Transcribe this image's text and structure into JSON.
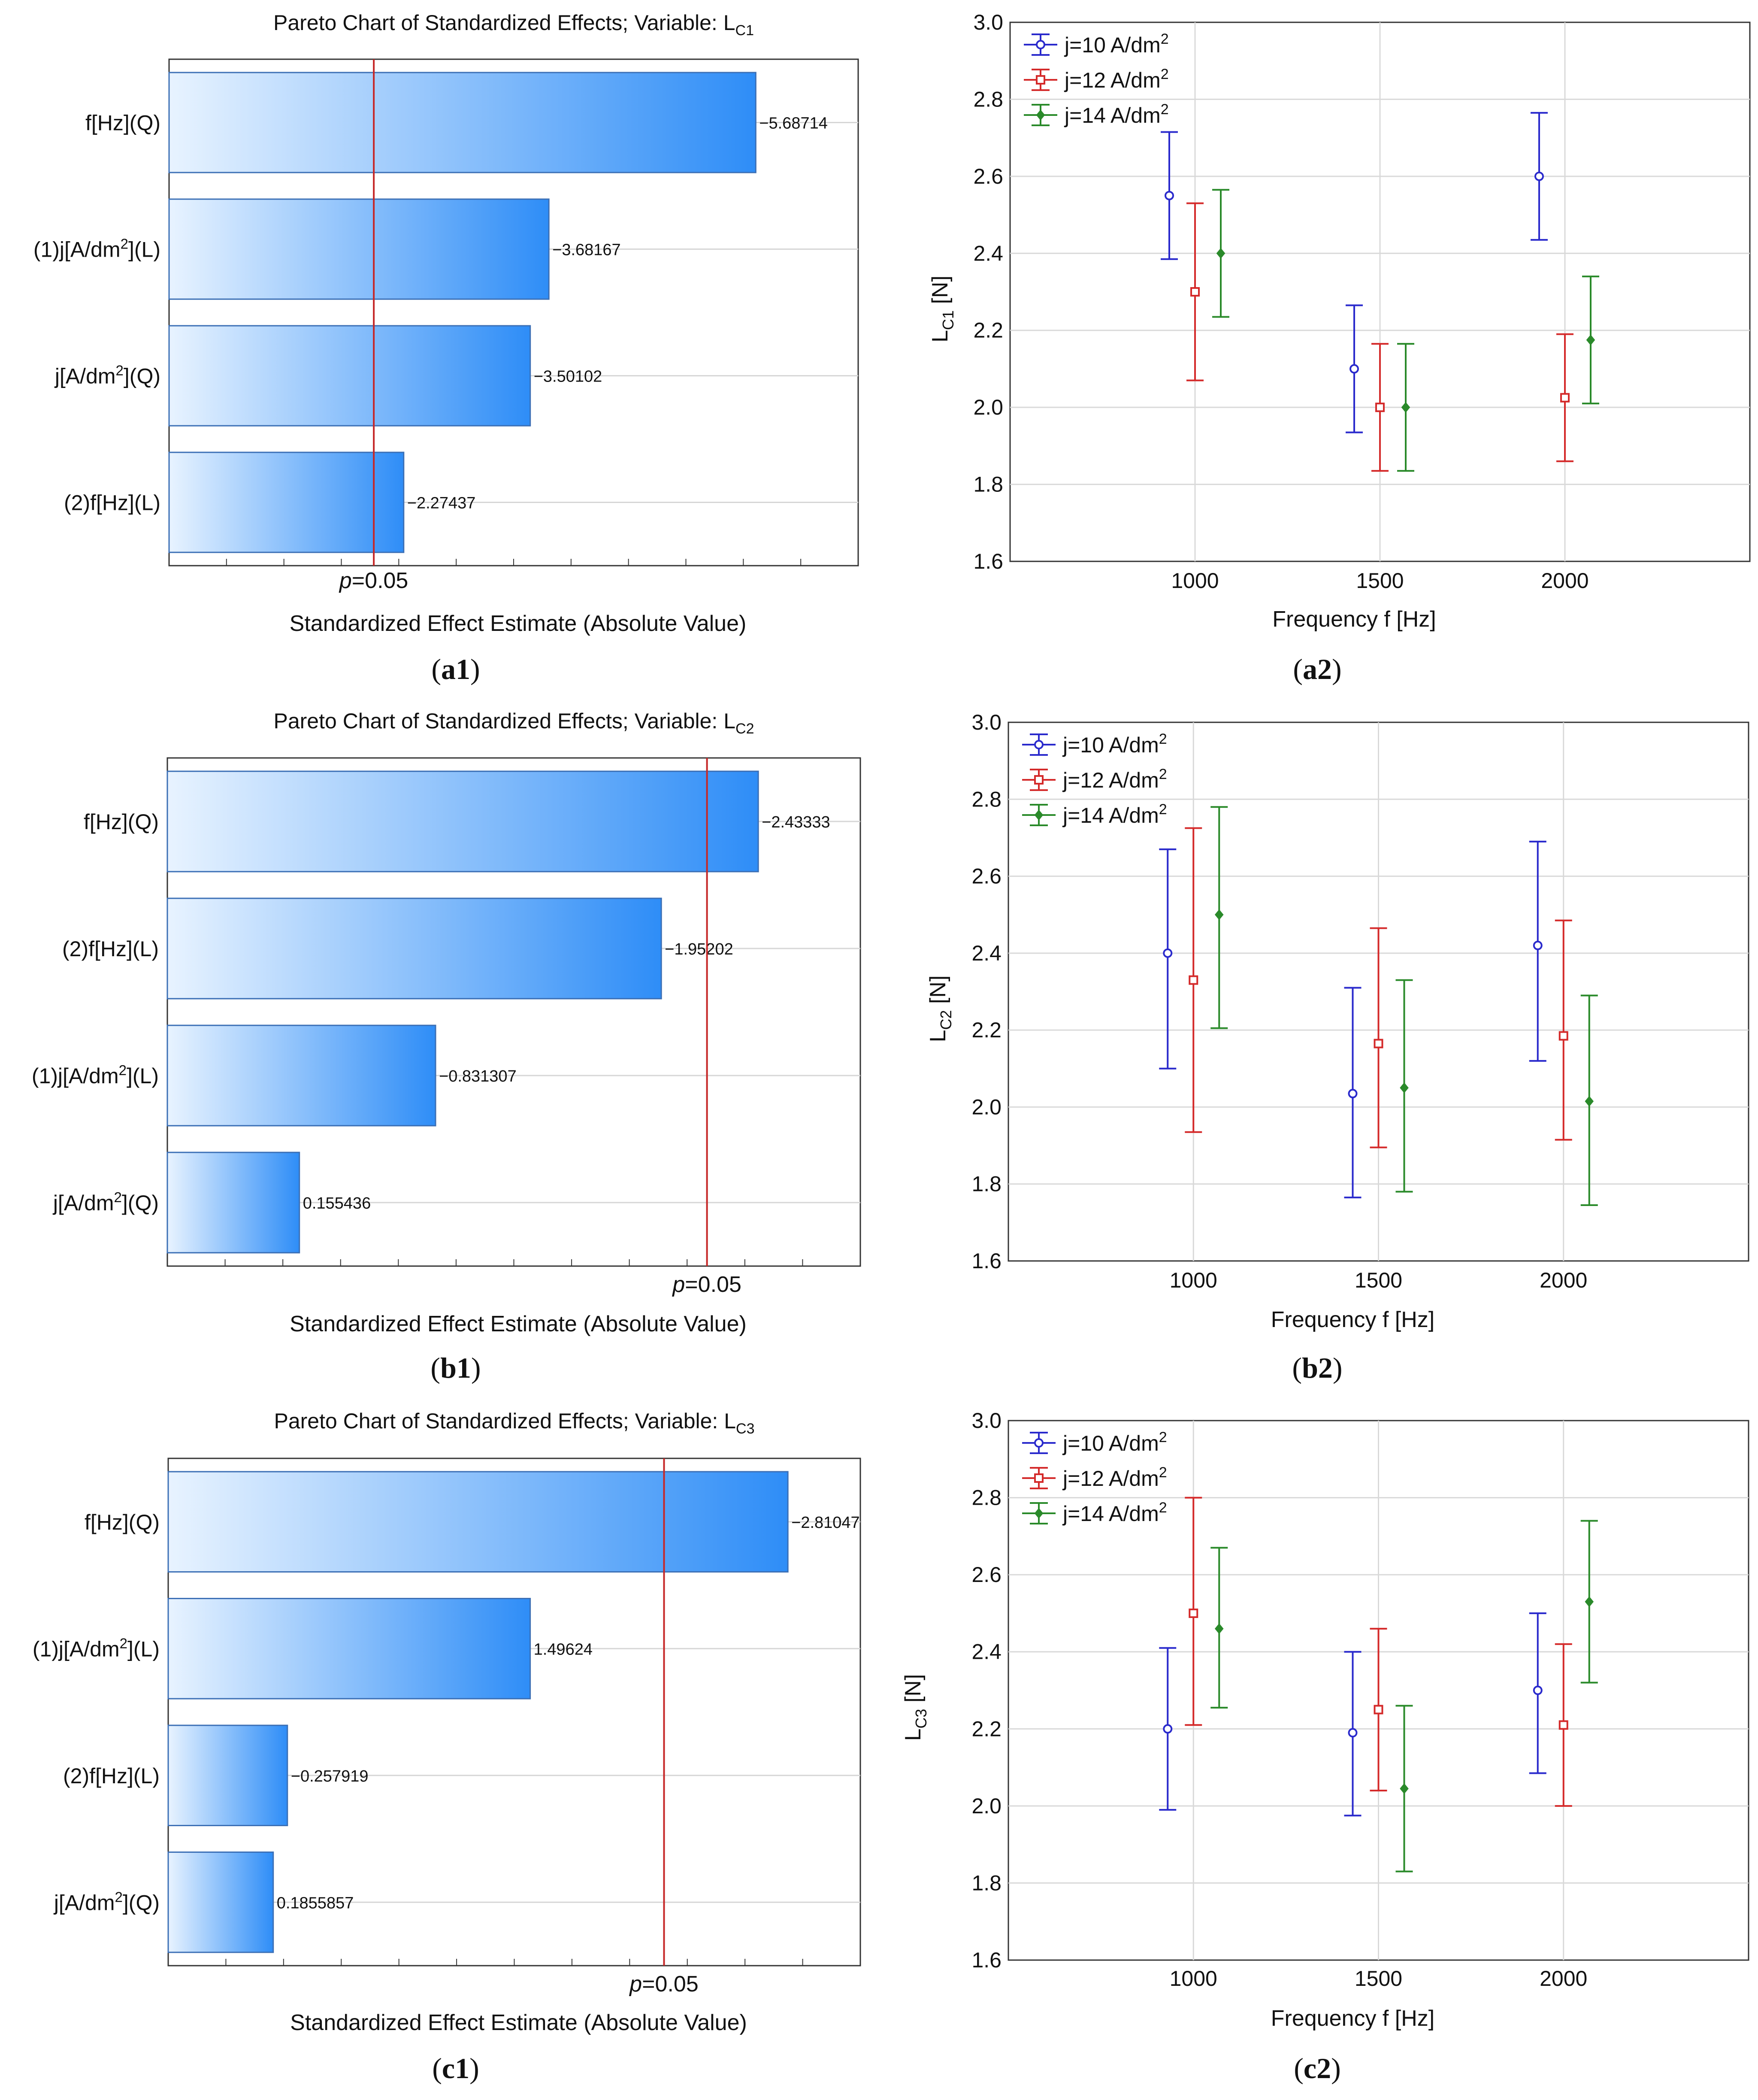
{
  "chart_data": [
    {
      "id": "a1",
      "type": "bar",
      "orientation": "horizontal",
      "title": "Pareto Chart of Standardized Effects; Variable: L",
      "title_sub": "C1",
      "xlabel": "Standardized Effect Estimate (Absolute Value)",
      "categories": [
        "f[Hz](Q)",
        "(1)j[A/dm2](L)",
        "j[A/dm2](Q)",
        "(2)f[Hz](L)"
      ],
      "values": [
        5.68714,
        3.68167,
        3.50102,
        2.27437
      ],
      "value_labels": [
        "−5.68714",
        "−3.68167",
        "−3.50102",
        "−2.27437"
      ],
      "p_line": {
        "label_italic": "p",
        "label_rest": "=0.05",
        "value": 1.9845
      },
      "xlim": [
        0,
        6.68
      ],
      "caption_bold": "a1"
    },
    {
      "id": "a2",
      "type": "errorbar",
      "ylabel": "L",
      "ylabel_sub": "C1",
      "ylabel_unit": " [N]",
      "xlabel": "Frequency f [Hz]",
      "xlim": [
        500,
        2500
      ],
      "ylim": [
        1.6,
        3.0
      ],
      "xticks": [
        1000,
        1500,
        2000
      ],
      "yticks": [
        "1.6",
        "1.8",
        "2.0",
        "2.2",
        "2.4",
        "2.6",
        "2.8",
        "3.0"
      ],
      "series": [
        {
          "name": "j=10 A/dm",
          "sup": "2",
          "color": "#2a2acc",
          "marker": "circle",
          "x": [
            1000,
            1500,
            2000
          ],
          "mean": [
            2.55,
            2.1,
            2.6
          ],
          "lower": [
            2.385,
            1.935,
            2.435
          ],
          "upper": [
            2.715,
            2.265,
            2.765
          ]
        },
        {
          "name": "j=12 A/dm",
          "sup": "2",
          "color": "#d42a2a",
          "marker": "square",
          "x": [
            1000,
            1500,
            2000
          ],
          "mean": [
            2.3,
            2.0,
            2.025
          ],
          "lower": [
            2.07,
            1.835,
            1.86
          ],
          "upper": [
            2.53,
            2.165,
            2.19
          ]
        },
        {
          "name": "j=14 A/dm",
          "sup": "2",
          "color": "#2a8a2a",
          "marker": "diamond",
          "x": [
            1000,
            1500,
            2000
          ],
          "mean": [
            2.4,
            2.0,
            2.175
          ],
          "lower": [
            2.235,
            1.835,
            2.01
          ],
          "upper": [
            2.565,
            2.165,
            2.34
          ]
        }
      ],
      "caption_bold": "a2"
    },
    {
      "id": "b1",
      "type": "bar",
      "orientation": "horizontal",
      "title": "Pareto Chart of Standardized Effects; Variable: L",
      "title_sub": "C2",
      "xlabel": "Standardized Effect Estimate (Absolute Value)",
      "categories": [
        "f[Hz](Q)",
        "(2)f[Hz](L)",
        "(1)j[A/dm2](L)",
        "j[A/dm2](Q)"
      ],
      "values": [
        2.43333,
        1.95202,
        0.831307,
        0.155436
      ],
      "value_labels": [
        "−2.43333",
        "−1.95202",
        "−0.831307",
        "0.155436"
      ],
      "p_line": {
        "label_italic": "p",
        "label_rest": "=0.05",
        "value": 2.1788
      },
      "xlim": [
        -0.5,
        2.94
      ],
      "caption_bold": "b1"
    },
    {
      "id": "b2",
      "type": "errorbar",
      "ylabel": "L",
      "ylabel_sub": "C2",
      "ylabel_unit": " [N]",
      "xlabel": "Frequency f [Hz]",
      "xlim": [
        500,
        2500
      ],
      "ylim": [
        1.6,
        3.0
      ],
      "xticks": [
        1000,
        1500,
        2000
      ],
      "yticks": [
        "1.6",
        "1.8",
        "2.0",
        "2.2",
        "2.4",
        "2.6",
        "2.8",
        "3.0"
      ],
      "series": [
        {
          "name": "j=10 A/dm",
          "sup": "2",
          "color": "#2a2acc",
          "marker": "circle",
          "x": [
            1000,
            1500,
            2000
          ],
          "mean": [
            2.4,
            2.035,
            2.42
          ],
          "lower": [
            2.1,
            1.765,
            2.12
          ],
          "upper": [
            2.67,
            2.31,
            2.69
          ]
        },
        {
          "name": "j=12 A/dm",
          "sup": "2",
          "color": "#d42a2a",
          "marker": "square",
          "x": [
            1000,
            1500,
            2000
          ],
          "mean": [
            2.33,
            2.165,
            2.185
          ],
          "lower": [
            1.935,
            1.895,
            1.915
          ],
          "upper": [
            2.725,
            2.465,
            2.485
          ]
        },
        {
          "name": "j=14 A/dm",
          "sup": "2",
          "color": "#2a8a2a",
          "marker": "diamond",
          "x": [
            1000,
            1500,
            2000
          ],
          "mean": [
            2.5,
            2.05,
            2.015
          ],
          "lower": [
            2.205,
            1.78,
            1.745
          ],
          "upper": [
            2.78,
            2.33,
            2.29
          ]
        }
      ],
      "caption_bold": "b2"
    },
    {
      "id": "c1",
      "type": "bar",
      "orientation": "horizontal",
      "title": "Pareto Chart of Standardized Effects; Variable: L",
      "title_sub": "C3",
      "xlabel": "Standardized Effect Estimate (Absolute Value)",
      "categories": [
        "f[Hz](Q)",
        "(1)j[A/dm2](L)",
        "(2)f[Hz](L)",
        "j[A/dm2](Q)"
      ],
      "values": [
        2.81047,
        1.49624,
        0.257919,
        0.1855857
      ],
      "value_labels": [
        "−2.81047",
        "1.49624",
        "−0.257919",
        "0.1855857"
      ],
      "p_line": {
        "label_italic": "p",
        "label_rest": "=0.05",
        "value": 2.1788
      },
      "xlim": [
        -0.35,
        3.18
      ],
      "caption_bold": "c1"
    },
    {
      "id": "c2",
      "type": "errorbar",
      "ylabel": "L",
      "ylabel_sub": "C3",
      "ylabel_unit": " [N]",
      "xlabel": "Frequency f [Hz]",
      "xlim": [
        500,
        2500
      ],
      "ylim": [
        1.6,
        3.0
      ],
      "xticks": [
        1000,
        1500,
        2000
      ],
      "yticks": [
        "1.6",
        "1.8",
        "2.0",
        "2.2",
        "2.4",
        "2.6",
        "2.8",
        "3.0"
      ],
      "series": [
        {
          "name": "j=10 A/dm",
          "sup": "2",
          "color": "#2a2acc",
          "marker": "circle",
          "x": [
            1000,
            1500,
            2000
          ],
          "mean": [
            2.2,
            2.19,
            2.3
          ],
          "lower": [
            1.99,
            1.975,
            2.085
          ],
          "upper": [
            2.41,
            2.4,
            2.5
          ]
        },
        {
          "name": "j=12 A/dm",
          "sup": "2",
          "color": "#d42a2a",
          "marker": "square",
          "x": [
            1000,
            1500,
            2000
          ],
          "mean": [
            2.5,
            2.25,
            2.21
          ],
          "lower": [
            2.21,
            2.04,
            2.0
          ],
          "upper": [
            2.8,
            2.46,
            2.42
          ]
        },
        {
          "name": "j=14 A/dm",
          "sup": "2",
          "color": "#2a8a2a",
          "marker": "diamond",
          "x": [
            1000,
            1500,
            2000
          ],
          "mean": [
            2.46,
            2.045,
            2.53
          ],
          "lower": [
            2.255,
            1.83,
            2.32
          ],
          "upper": [
            2.67,
            2.26,
            2.74
          ]
        }
      ],
      "caption_bold": "c2"
    }
  ]
}
